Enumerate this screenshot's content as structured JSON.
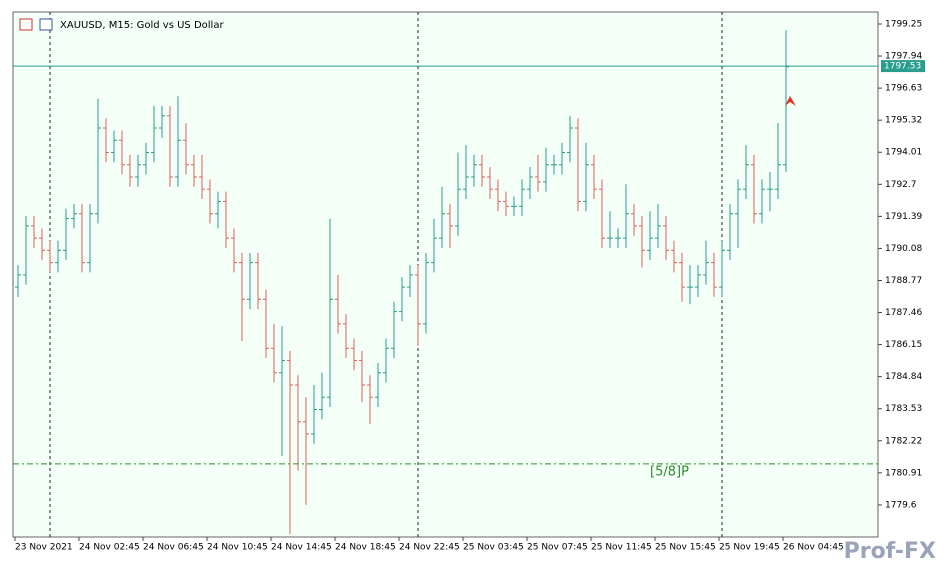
{
  "chart_data": {
    "type": "ohlc",
    "title": "XAUUSD, M15:  Gold vs US Dollar",
    "up_color": "#2a9d8f",
    "down_color": "#e0605a",
    "ylim": [
      1778.29,
      1799.74
    ],
    "yticks": [
      1799.25,
      1797.94,
      1796.63,
      1795.32,
      1794.01,
      1792.7,
      1791.39,
      1790.08,
      1788.77,
      1787.46,
      1786.15,
      1784.84,
      1783.53,
      1782.22,
      1780.91,
      1779.6
    ],
    "x_tick_labels": [
      "23 Nov 2021",
      "24 Nov 02:45",
      "24 Nov 06:45",
      "24 Nov 10:45",
      "24 Nov 14:45",
      "24 Nov 18:45",
      "24 Nov 22:45",
      "25 Nov 03:45",
      "25 Nov 07:45",
      "25 Nov 11:45",
      "25 Nov 15:45",
      "25 Nov 19:45",
      "26 Nov 04:45"
    ],
    "open": [
      1788.5,
      1789.0,
      1791.0,
      1790.5,
      1790.0,
      1789.5,
      1790.0,
      1791.3,
      1791.5,
      1789.5,
      1791.5,
      1795.0,
      1794.0,
      1794.5,
      1793.5,
      1793.0,
      1793.5,
      1794.0,
      1795.0,
      1795.5,
      1793.0,
      1794.5,
      1793.5,
      1793.0,
      1792.5,
      1791.5,
      1792.0,
      1790.5,
      1789.5,
      1788.0,
      1789.5,
      1788.0,
      1786.0,
      1785.0,
      1785.5,
      1784.5,
      1783.0,
      1782.5,
      1783.5,
      1784.0,
      1788.0,
      1787.0,
      1786.0,
      1785.5,
      1784.5,
      1784.0,
      1785.0,
      1786.0,
      1787.5,
      1788.5,
      1789.0,
      1787.0,
      1789.5,
      1790.5,
      1791.5,
      1791.0,
      1792.5,
      1793.0,
      1793.5,
      1793.0,
      1792.5,
      1792.0,
      1791.8,
      1791.8,
      1792.5,
      1793.0,
      1792.8,
      1793.5,
      1793.5,
      1794.0,
      1795.0,
      1792.0,
      1793.5,
      1792.5,
      1790.5,
      1790.5,
      1790.5,
      1791.5,
      1791.0,
      1790.0,
      1790.5,
      1791.0,
      1790.0,
      1789.5,
      1788.5,
      1788.5,
      1789.0,
      1789.5,
      1788.5,
      1790.0,
      1791.5,
      1792.5,
      1793.5,
      1791.5,
      1792.5,
      1792.5,
      1793.5
    ],
    "high": [
      1789.4,
      1791.4,
      1791.4,
      1790.9,
      1790.4,
      1790.4,
      1791.7,
      1791.9,
      1791.9,
      1791.9,
      1796.2,
      1795.4,
      1794.9,
      1794.9,
      1793.9,
      1793.9,
      1794.4,
      1795.9,
      1795.9,
      1795.9,
      1796.3,
      1795.2,
      1793.9,
      1793.9,
      1792.9,
      1792.4,
      1792.4,
      1790.9,
      1789.9,
      1789.9,
      1789.9,
      1788.4,
      1787.0,
      1786.9,
      1785.9,
      1784.9,
      1784.0,
      1784.5,
      1785.0,
      1791.3,
      1789.0,
      1787.4,
      1786.4,
      1785.9,
      1784.9,
      1785.4,
      1786.4,
      1787.9,
      1788.9,
      1789.4,
      1789.4,
      1789.9,
      1791.3,
      1792.6,
      1791.9,
      1794.0,
      1794.3,
      1793.9,
      1793.9,
      1793.4,
      1792.9,
      1792.4,
      1792.2,
      1792.9,
      1793.4,
      1793.9,
      1794.2,
      1793.9,
      1794.4,
      1795.5,
      1795.4,
      1794.4,
      1793.9,
      1792.9,
      1791.6,
      1790.9,
      1792.7,
      1791.9,
      1791.4,
      1791.6,
      1791.9,
      1791.4,
      1790.4,
      1789.9,
      1789.4,
      1789.4,
      1790.4,
      1789.9,
      1790.4,
      1791.9,
      1792.9,
      1794.3,
      1793.9,
      1792.9,
      1793.2,
      1795.2,
      1799.0
    ],
    "low": [
      1788.1,
      1788.6,
      1790.1,
      1789.6,
      1789.1,
      1789.1,
      1789.6,
      1790.9,
      1789.1,
      1789.1,
      1791.1,
      1793.6,
      1793.6,
      1793.1,
      1792.6,
      1792.6,
      1793.1,
      1793.6,
      1794.6,
      1792.6,
      1792.6,
      1793.1,
      1792.6,
      1792.1,
      1791.1,
      1790.9,
      1790.1,
      1789.1,
      1786.3,
      1787.6,
      1787.6,
      1785.6,
      1784.6,
      1781.6,
      1778.4,
      1781.0,
      1779.6,
      1782.1,
      1783.1,
      1783.6,
      1786.6,
      1785.6,
      1785.1,
      1783.8,
      1782.9,
      1783.6,
      1784.6,
      1785.6,
      1787.1,
      1788.1,
      1786.1,
      1786.6,
      1789.1,
      1790.1,
      1790.1,
      1790.6,
      1792.1,
      1792.6,
      1792.6,
      1792.1,
      1791.6,
      1791.4,
      1791.4,
      1791.4,
      1792.1,
      1792.4,
      1792.4,
      1793.1,
      1793.1,
      1793.6,
      1791.6,
      1791.6,
      1792.1,
      1790.1,
      1790.1,
      1790.1,
      1790.1,
      1790.6,
      1789.3,
      1789.6,
      1790.1,
      1789.6,
      1789.1,
      1787.9,
      1787.8,
      1788.1,
      1788.6,
      1788.1,
      1788.1,
      1789.6,
      1790.1,
      1792.1,
      1791.1,
      1791.1,
      1791.6,
      1792.1,
      1793.2
    ],
    "close": [
      1789.0,
      1791.0,
      1790.5,
      1790.0,
      1789.5,
      1790.0,
      1791.3,
      1791.5,
      1789.5,
      1791.5,
      1795.0,
      1794.0,
      1794.5,
      1793.5,
      1793.0,
      1793.5,
      1794.0,
      1795.0,
      1795.5,
      1793.0,
      1794.5,
      1793.5,
      1793.0,
      1792.5,
      1791.5,
      1792.0,
      1790.5,
      1789.5,
      1788.0,
      1789.5,
      1788.0,
      1786.0,
      1785.0,
      1785.5,
      1784.5,
      1783.0,
      1782.5,
      1783.5,
      1784.0,
      1788.0,
      1787.0,
      1786.0,
      1785.5,
      1784.5,
      1784.0,
      1785.0,
      1786.0,
      1787.5,
      1788.5,
      1789.0,
      1787.0,
      1789.5,
      1790.5,
      1791.5,
      1791.0,
      1792.5,
      1793.0,
      1793.5,
      1793.0,
      1792.5,
      1792.0,
      1791.8,
      1791.8,
      1792.5,
      1793.0,
      1792.8,
      1793.5,
      1793.5,
      1794.0,
      1795.0,
      1792.0,
      1793.5,
      1792.5,
      1790.5,
      1790.5,
      1790.5,
      1791.5,
      1791.0,
      1790.0,
      1790.5,
      1791.0,
      1790.0,
      1789.5,
      1788.5,
      1788.5,
      1789.0,
      1789.5,
      1788.5,
      1790.0,
      1791.5,
      1792.5,
      1793.5,
      1791.5,
      1792.5,
      1792.5,
      1793.5,
      1797.5
    ],
    "last_price": 1797.53,
    "last_price_color": "#2a9d8f",
    "level_line": {
      "value": 1781.28,
      "label": "[5/8]P",
      "color": "#2e8b2e"
    },
    "watermark": "Prof-FX"
  }
}
